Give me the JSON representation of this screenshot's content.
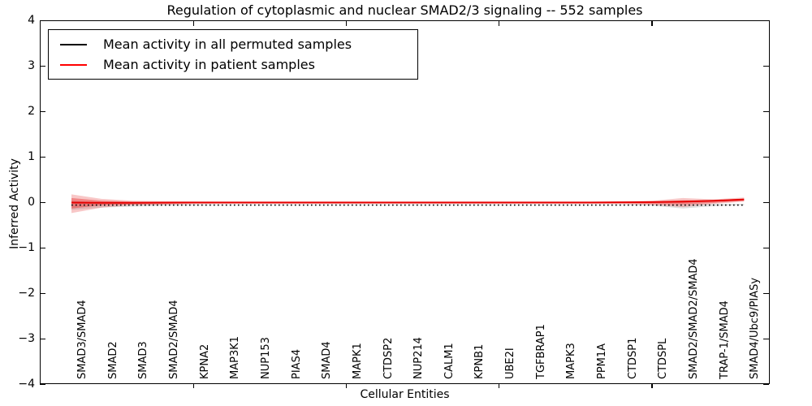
{
  "figure": {
    "title": "Regulation of cytoplasmic and nuclear SMAD2/3 signaling -- 552 samples",
    "xlabel": "Cellular Entities",
    "ylabel": "Inferred Activity"
  },
  "legend": {
    "items": [
      {
        "label": "Mean activity in all permuted samples",
        "color": "#000000"
      },
      {
        "label": "Mean activity in patient samples",
        "color": "#ff0000"
      }
    ]
  },
  "chart_data": {
    "type": "line",
    "title": "Regulation of cytoplasmic and nuclear SMAD2/3 signaling -- 552 samples",
    "xlabel": "Cellular Entities",
    "ylabel": "Inferred Activity",
    "ylim": [
      -4,
      4
    ],
    "ytick_labels": [
      "4",
      "3",
      "2",
      "1",
      "0",
      "−1",
      "−2",
      "−3",
      "−4"
    ],
    "ytick_values": [
      4,
      3,
      2,
      1,
      0,
      -1,
      -2,
      -3,
      -4
    ],
    "x_major_tick_indices": [
      4,
      9,
      14,
      19
    ],
    "grid": false,
    "legend_position": "upper left",
    "categories": [
      "SMAD3/SMAD4",
      "SMAD2",
      "SMAD3",
      "SMAD2/SMAD4",
      "KPNA2",
      "MAP3K1",
      "NUP153",
      "PIAS4",
      "SMAD4",
      "MAPK1",
      "CTDSP2",
      "NUP214",
      "CALM1",
      "KPNB1",
      "UBE2I",
      "TGFBRAP1",
      "MAPK3",
      "PPM1A",
      "CTDSP1",
      "CTDSPL",
      "SMAD2/SMAD2/SMAD4",
      "TRAP-1/SMAD4",
      "SMAD4/Ubc9/PIASy"
    ],
    "series": [
      {
        "name": "Mean activity in all permuted samples",
        "color": "#000000",
        "line_style": "dotted",
        "values": [
          -0.045,
          -0.045,
          -0.045,
          -0.045,
          -0.045,
          -0.045,
          -0.045,
          -0.045,
          -0.045,
          -0.045,
          -0.045,
          -0.045,
          -0.045,
          -0.045,
          -0.045,
          -0.045,
          -0.045,
          -0.045,
          -0.045,
          -0.045,
          -0.045,
          -0.045,
          -0.045
        ]
      },
      {
        "name": "Mean activity in patient samples",
        "color": "#e60000",
        "line_style": "solid",
        "values": [
          0.01,
          0.005,
          0.005,
          0.01,
          0.012,
          0.012,
          0.012,
          0.012,
          0.012,
          0.012,
          0.012,
          0.012,
          0.012,
          0.012,
          0.012,
          0.012,
          0.012,
          0.012,
          0.015,
          0.02,
          0.03,
          0.05,
          0.075
        ]
      }
    ],
    "bands": [
      {
        "name": "permuted-samples-spread",
        "color": "rgba(130,130,130,0.25)",
        "upper": [
          0.05,
          0.01,
          -0.01,
          -0.02,
          -0.025,
          -0.03,
          -0.03,
          -0.03,
          -0.03,
          -0.03,
          -0.03,
          -0.03,
          -0.03,
          -0.03,
          -0.03,
          -0.03,
          -0.03,
          -0.03,
          -0.03,
          -0.03,
          -0.02,
          -0.02,
          -0.02
        ],
        "lower": [
          -0.15,
          -0.1,
          -0.08,
          -0.06,
          -0.055,
          -0.05,
          -0.05,
          -0.05,
          -0.05,
          -0.05,
          -0.05,
          -0.05,
          -0.05,
          -0.05,
          -0.05,
          -0.05,
          -0.05,
          -0.05,
          -0.05,
          -0.06,
          -0.12,
          -0.07,
          -0.05
        ]
      },
      {
        "name": "patient-confidence-outer",
        "color": "rgba(229,30,30,0.25)",
        "upper": [
          0.19,
          0.09,
          0.05,
          0.04,
          0.03,
          0.025,
          0.025,
          0.025,
          0.025,
          0.025,
          0.025,
          0.025,
          0.025,
          0.025,
          0.025,
          0.025,
          0.025,
          0.025,
          0.03,
          0.05,
          0.11,
          0.08,
          0.12
        ],
        "lower": [
          -0.22,
          -0.1,
          -0.05,
          -0.035,
          -0.02,
          -0.015,
          -0.015,
          -0.015,
          -0.015,
          -0.015,
          -0.015,
          -0.015,
          -0.015,
          -0.015,
          -0.015,
          -0.015,
          -0.015,
          -0.015,
          -0.02,
          -0.04,
          -0.09,
          -0.02,
          0.03
        ]
      },
      {
        "name": "patient-confidence-inner",
        "color": "rgba(229,30,30,0.38)",
        "upper": [
          0.11,
          0.05,
          0.03,
          0.025,
          0.02,
          0.018,
          0.018,
          0.018,
          0.018,
          0.018,
          0.018,
          0.018,
          0.018,
          0.018,
          0.018,
          0.018,
          0.018,
          0.018,
          0.02,
          0.03,
          0.06,
          0.06,
          0.1
        ],
        "lower": [
          -0.12,
          -0.05,
          -0.03,
          -0.02,
          -0.01,
          -0.008,
          -0.008,
          -0.008,
          -0.008,
          -0.008,
          -0.008,
          -0.008,
          -0.008,
          -0.008,
          -0.008,
          -0.008,
          -0.008,
          -0.008,
          -0.01,
          -0.02,
          -0.03,
          0.0,
          0.05
        ]
      }
    ]
  }
}
